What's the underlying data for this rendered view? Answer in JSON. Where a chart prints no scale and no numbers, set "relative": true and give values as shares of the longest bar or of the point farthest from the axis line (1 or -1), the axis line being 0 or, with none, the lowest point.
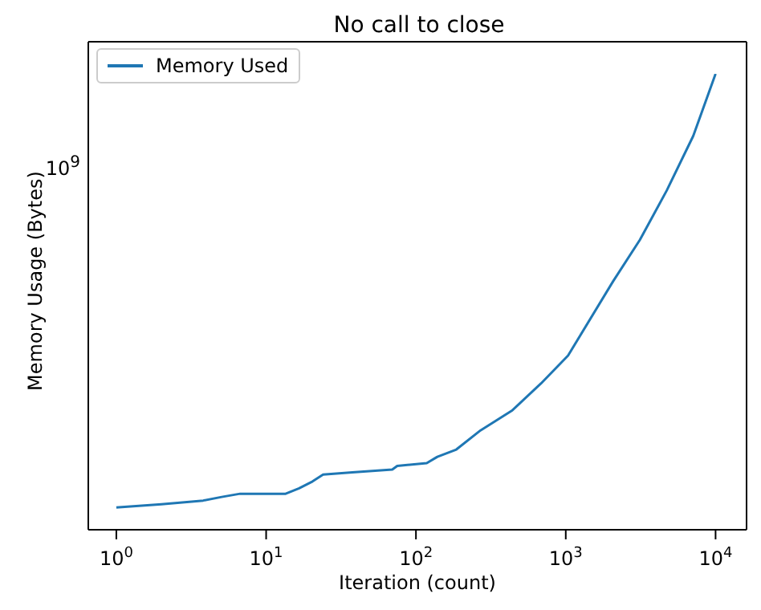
{
  "chart_data": {
    "type": "line",
    "title": "No call to close",
    "xlabel": "Iteration (count)",
    "ylabel": "Memory Usage (Bytes)",
    "relative": true,
    "annotations": [
      "10$^{9}$"
    ],
    "x": [
      1,
      2,
      3.8,
      5.06,
      6.7,
      13.5,
      16.6,
      20.4,
      24,
      37.6,
      69.5,
      75,
      118,
      139,
      186,
      270,
      440,
      684,
      1036,
      2080,
      3127,
      4720,
      7100,
      10000
    ],
    "series": [
      {
        "name": "Memory Used",
        "color": "#1f77b4",
        "values": [
          0.049,
          0.056,
          0.064,
          0.072,
          0.079,
          0.079,
          0.091,
          0.106,
          0.121,
          0.126,
          0.132,
          0.14,
          0.146,
          0.16,
          0.176,
          0.218,
          0.262,
          0.321,
          0.382,
          0.546,
          0.636,
          0.744,
          0.864,
          1
        ]
      }
    ],
    "log": "x",
    "xlim": [
      0.65,
      16100
    ],
    "xticks": [
      {
        "value": 1,
        "label": "10$^{0}$"
      },
      {
        "value": 10,
        "label": "10$^{1}$"
      },
      {
        "value": 100,
        "label": "10$^{2}$"
      },
      {
        "value": 1000,
        "label": "10$^{3}$"
      },
      {
        "value": 10000,
        "label": "10$^{4}$"
      }
    ],
    "grid": false,
    "legend": "top left",
    "line_style": "solid",
    "marker": "none"
  }
}
